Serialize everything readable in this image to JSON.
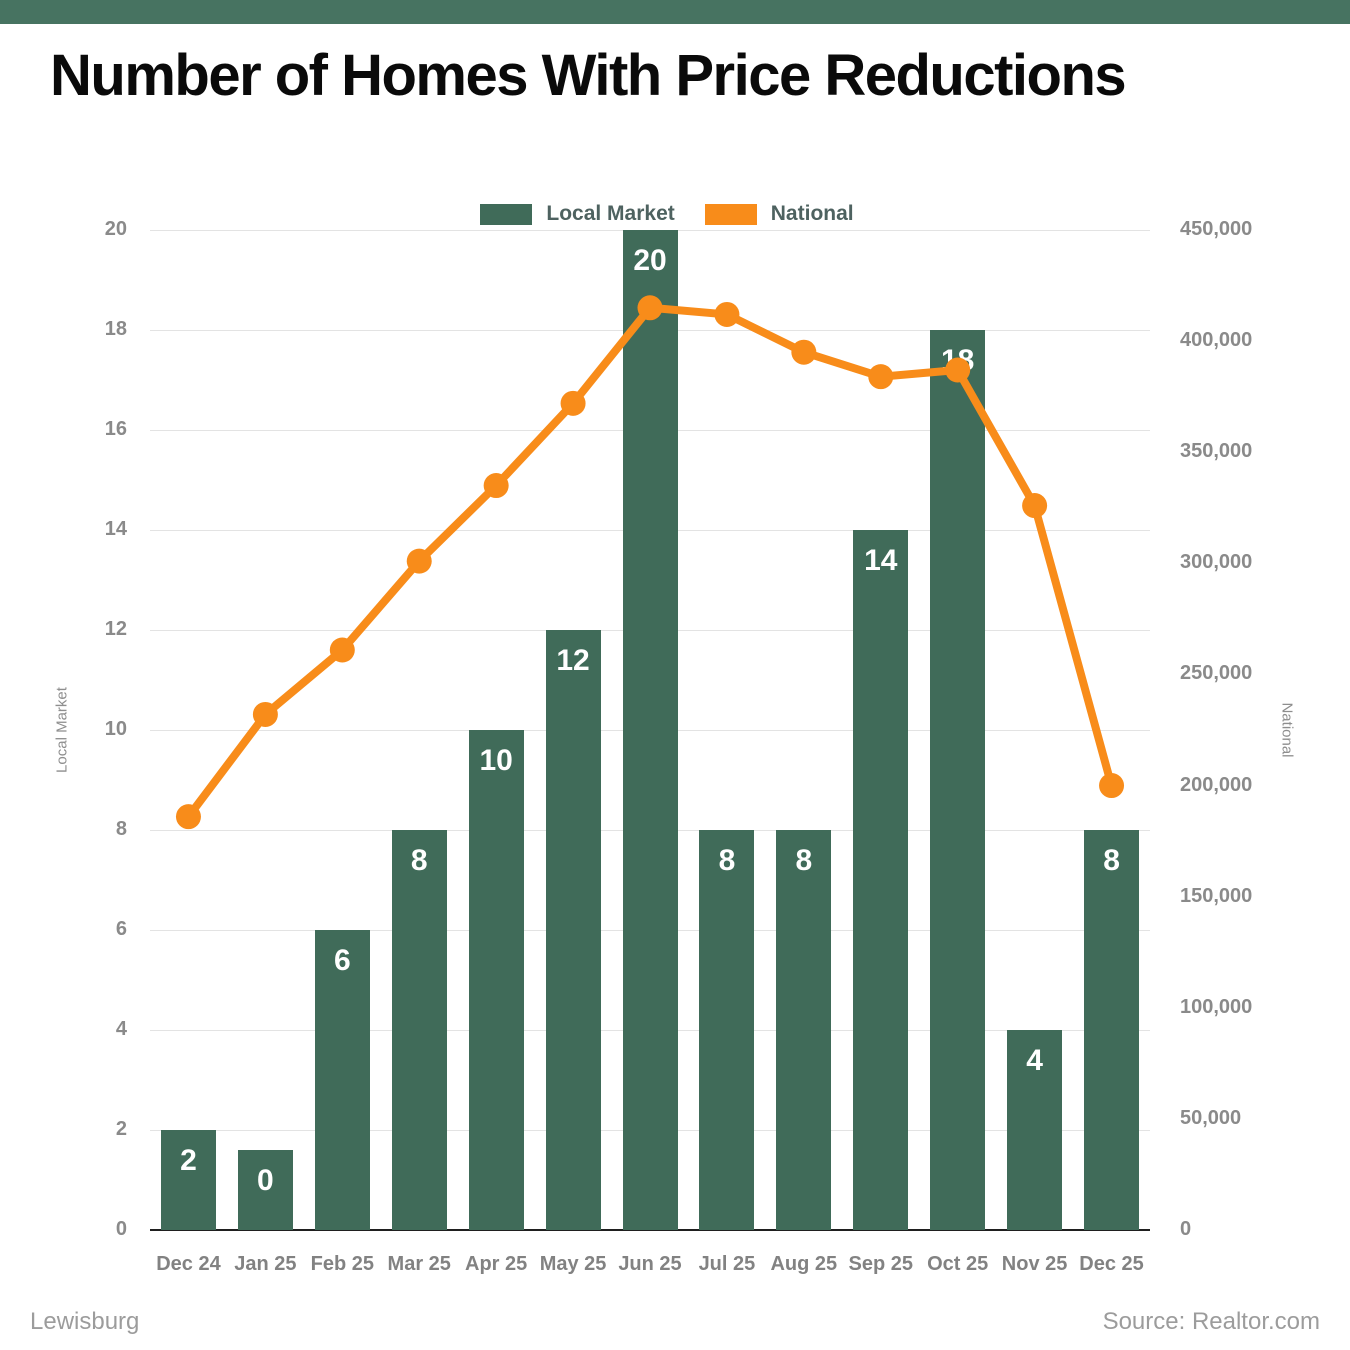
{
  "title": "Number of Homes With Price Reductions",
  "banner_color": "#477361",
  "footer": {
    "left": "Lewisburg",
    "right": "Source: Realtor.com"
  },
  "colors": {
    "bar_green": "#406b59",
    "line_orange": "#f88c1a",
    "gridline": "#e3e3e3",
    "baseline": "#1f1f1f",
    "tick_text": "#8a8a8a",
    "legend_text": "#4e6260"
  },
  "chart_data": {
    "type": "bar",
    "subtype": "bar+line combo, dual y-axis",
    "categories": [
      "Dec 24",
      "Jan 25",
      "Feb 25",
      "Mar 25",
      "Apr 25",
      "May 25",
      "Jun 25",
      "Jul 25",
      "Aug 25",
      "Sep 25",
      "Oct 25",
      "Nov 25",
      "Dec 25"
    ],
    "series": [
      {
        "name": "Local Market",
        "type": "bar",
        "axis": "left",
        "color": "#406b59",
        "values": [
          2,
          0,
          6,
          8,
          10,
          12,
          20,
          8,
          8,
          14,
          18,
          4,
          8
        ]
      },
      {
        "name": "National",
        "type": "line",
        "axis": "right",
        "color": "#f88c1a",
        "values": [
          186000,
          232000,
          261000,
          301000,
          335000,
          372000,
          415000,
          412000,
          395000,
          384000,
          387000,
          326000,
          200000
        ]
      }
    ],
    "left_axis": {
      "label": "Local Market",
      "min": 0,
      "max": 20,
      "tick_step": 2
    },
    "right_axis": {
      "label": "National",
      "min": 0,
      "max": 450000,
      "tick_step": 50000
    },
    "grid": true,
    "legend_position": "top-center",
    "bar_value_labels": "white, bold, inside top of bars"
  }
}
